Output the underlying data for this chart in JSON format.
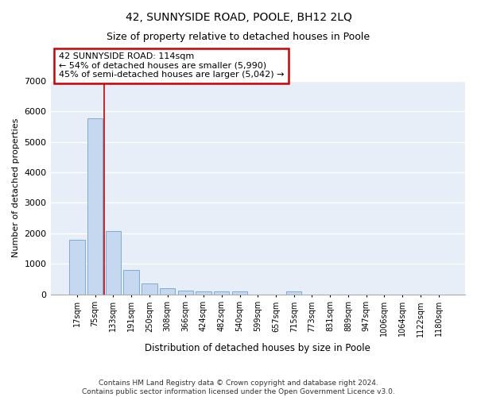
{
  "title": "42, SUNNYSIDE ROAD, POOLE, BH12 2LQ",
  "subtitle": "Size of property relative to detached houses in Poole",
  "xlabel": "Distribution of detached houses by size in Poole",
  "ylabel": "Number of detached properties",
  "categories": [
    "17sqm",
    "75sqm",
    "133sqm",
    "191sqm",
    "250sqm",
    "308sqm",
    "366sqm",
    "424sqm",
    "482sqm",
    "540sqm",
    "599sqm",
    "657sqm",
    "715sqm",
    "773sqm",
    "831sqm",
    "889sqm",
    "947sqm",
    "1006sqm",
    "1064sqm",
    "1122sqm",
    "1180sqm"
  ],
  "values": [
    1780,
    5780,
    2080,
    800,
    340,
    195,
    120,
    100,
    90,
    80,
    0,
    0,
    85,
    0,
    0,
    0,
    0,
    0,
    0,
    0,
    0
  ],
  "bar_color": "#c5d8f0",
  "bar_edge_color": "#7aaed6",
  "vline_x": 1.5,
  "annotation_text": "42 SUNNYSIDE ROAD: 114sqm\n← 54% of detached houses are smaller (5,990)\n45% of semi-detached houses are larger (5,042) →",
  "annotation_box_color": "white",
  "annotation_box_edge_color": "#cc0000",
  "vline_color": "#cc0000",
  "ylim": [
    0,
    7000
  ],
  "yticks": [
    0,
    1000,
    2000,
    3000,
    4000,
    5000,
    6000,
    7000
  ],
  "footer_line1": "Contains HM Land Registry data © Crown copyright and database right 2024.",
  "footer_line2": "Contains public sector information licensed under the Open Government Licence v3.0.",
  "bg_color": "#e8eef8",
  "grid_color": "white",
  "title_fontsize": 10,
  "subtitle_fontsize": 9
}
